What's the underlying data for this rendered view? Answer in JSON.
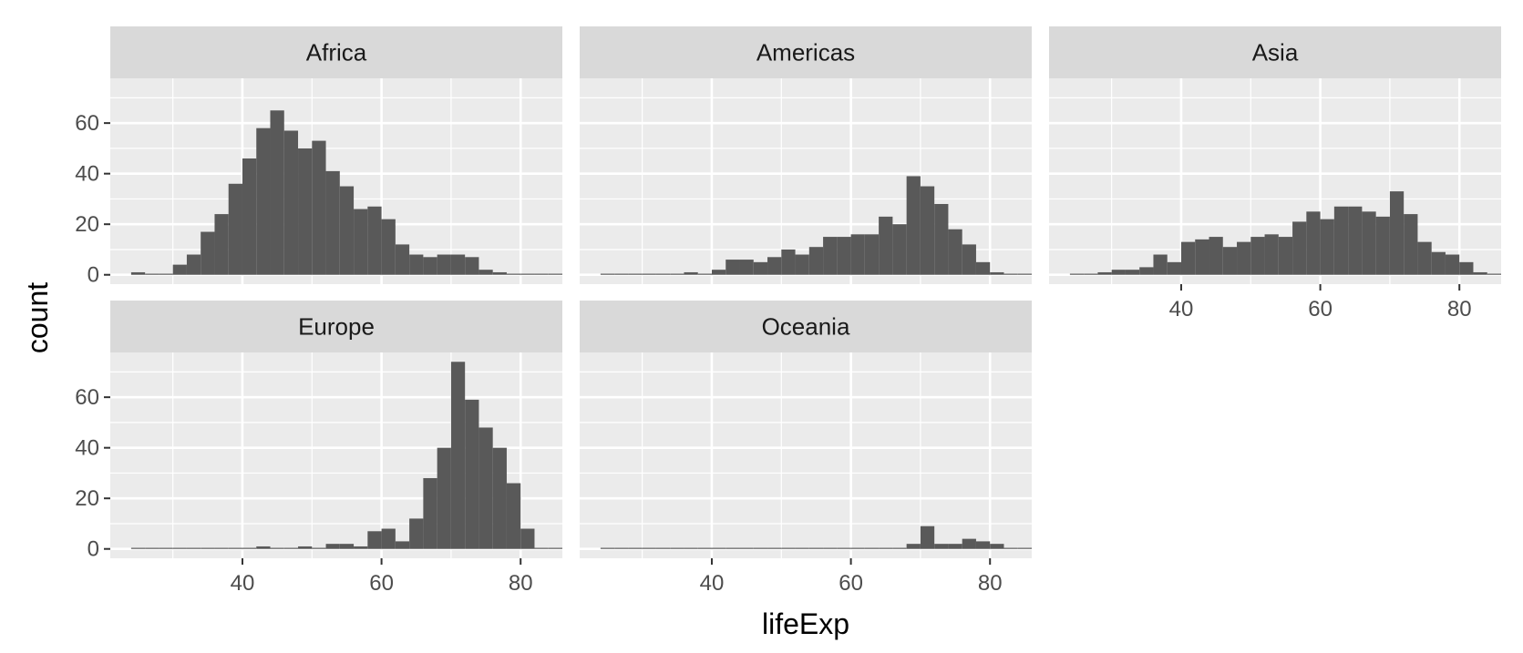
{
  "chart_data": {
    "type": "histogram",
    "layout": "facet_wrap",
    "xlabel": "lifeExp",
    "ylabel": "count",
    "xlim": [
      21,
      86
    ],
    "ylim": [
      -3.7,
      77.7
    ],
    "x_ticks": [
      40,
      60,
      80
    ],
    "y_ticks": [
      0,
      20,
      40,
      60
    ],
    "bin_start": 24,
    "bin_width": 2,
    "grid": true,
    "colors": {
      "bar": "#595959",
      "panel_bg": "#ebebeb",
      "strip_bg": "#d9d9d9",
      "grid": "#ffffff",
      "page_bg": "#ffffff"
    },
    "panels": [
      {
        "name": "Africa",
        "values": [
          1,
          0,
          0,
          4,
          8,
          17,
          24,
          36,
          46,
          58,
          65,
          57,
          50,
          53,
          41,
          35,
          26,
          27,
          22,
          12,
          8,
          7,
          8,
          8,
          7,
          2,
          1,
          0,
          0,
          0,
          0
        ]
      },
      {
        "name": "Americas",
        "values": [
          0,
          0,
          0,
          0,
          0,
          0,
          1,
          0,
          2,
          6,
          6,
          5,
          7,
          10,
          8,
          11,
          15,
          15,
          16,
          16,
          23,
          20,
          39,
          35,
          28,
          18,
          12,
          5,
          1,
          0,
          0
        ]
      },
      {
        "name": "Asia",
        "values": [
          0,
          0,
          1,
          2,
          2,
          3,
          8,
          5,
          13,
          14,
          15,
          11,
          13,
          15,
          16,
          15,
          21,
          25,
          22,
          27,
          27,
          25,
          23,
          33,
          24,
          13,
          9,
          8,
          5,
          1,
          0
        ]
      },
      {
        "name": "Europe",
        "values": [
          0,
          0,
          0,
          0,
          0,
          0,
          0,
          0,
          0,
          1,
          0,
          0,
          1,
          0,
          2,
          2,
          1,
          7,
          8,
          3,
          12,
          28,
          40,
          74,
          59,
          48,
          40,
          26,
          8,
          0,
          0
        ]
      },
      {
        "name": "Oceania",
        "values": [
          0,
          0,
          0,
          0,
          0,
          0,
          0,
          0,
          0,
          0,
          0,
          0,
          0,
          0,
          0,
          0,
          0,
          0,
          0,
          0,
          0,
          0,
          2,
          9,
          2,
          2,
          4,
          3,
          2,
          0,
          0
        ]
      }
    ]
  }
}
